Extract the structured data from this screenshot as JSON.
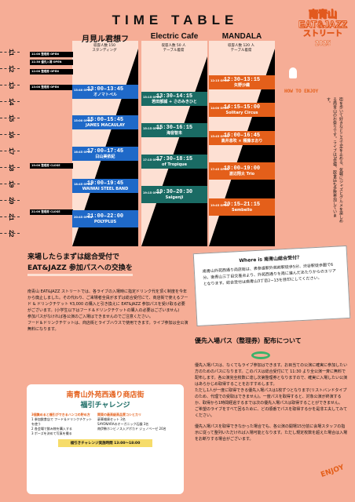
{
  "header": {
    "title": "TIME TABLE",
    "logo_l1": "南青山",
    "logo_l2": "EAT&JAZZ",
    "logo_l3": "ストリート",
    "logo_l4": "2025"
  },
  "venues": [
    {
      "name": "月見ル君想フ",
      "sub": "収容人数 150\nスタンディング"
    },
    {
      "name": "Electric Cafe",
      "sub": "収容人数 50 人\nテーブル着席"
    },
    {
      "name": "MANDALA",
      "sub": "収容人数 120 人\nテーブル着席"
    }
  ],
  "hours": [
    "11",
    "12",
    "13",
    "14",
    "15",
    "16",
    "17",
    "18",
    "19",
    "20",
    "21",
    "22"
  ],
  "notices": [
    "11:00 整理券 OPEN",
    "11:30 優先入場 OPEN",
    "12:00 整理券 OPEN",
    "13:00 整理券 OPEN",
    "19:00 整理券 CLOSE",
    "21:00 整理券 CLOSE"
  ],
  "tsuki": [
    {
      "open": "13:40 OPEN",
      "time": "13:00–13:45",
      "name": "オノマトペル"
    },
    {
      "open": "15:00 OPEN",
      "time": "15:00–15:45",
      "name": "JAMES MACAULAY"
    },
    {
      "open": "16:45 OPEN",
      "time": "17:00–17:45",
      "name": "臼山美依紀"
    },
    {
      "open": "18:45 OPEN",
      "time": "19:00–19:45",
      "name": "WAIWAI STEEL BAND"
    },
    {
      "open": "20:45 OPEN",
      "time": "21:00–22:00",
      "name": "POLYPLUS"
    }
  ],
  "electric": [
    {
      "open": "13:15 OPEN",
      "time": "13:30–14:15",
      "name": "若田部誠 + さのみきひと"
    },
    {
      "open": "15:15 OPEN",
      "time": "15:30–16:15",
      "name": "海音智未"
    },
    {
      "open": "17:15 OPEN",
      "time": "17:30–18:15",
      "name": "of Tropique"
    },
    {
      "open": "19:15 OPEN",
      "time": "19:30–20:30",
      "name": "Saigenji"
    }
  ],
  "mandala": [
    {
      "open": "12:15 OPEN",
      "time": "12:30–13:15",
      "name": "矢野沙織"
    },
    {
      "open": "14:00 OPEN",
      "time": "14:15–15:00",
      "name": "Solitary Circus"
    },
    {
      "open": "15:45 OPEN",
      "time": "16:00–16:45",
      "name": "高井息吹 × 種藤まおり"
    },
    {
      "open": "17:45 OPEN",
      "time": "18:00–19:00",
      "name": "渡辺翔太 Trio"
    },
    {
      "open": "19:45 OPEN",
      "time": "20:15–21:15",
      "name": "Sembello"
    }
  ],
  "howto": {
    "title": "HOW TO ENJOY",
    "text": "街を歩いて好きなところで足を止める、気軽にジャズとグルメを楽しめる南青山のお祭りです。ライブは3会場、飲食店も多数参加しています。"
  },
  "entry": {
    "h1": "来場したらまずは総合受付で",
    "h2": "EAT&JAZZ 参加パスへの交換を",
    "p1": "南青山 EAT&JAZZ ストリートでは、各ライブの入場時に指定ドリンク代を頂く制度を今年から廃止しました。その代わり、ご来場者全員がまずは総合受付にて、商店街で使えるフード & ドリンクチケット ¥3,000 の購入と引き換えに EAT&JAZZ 参加パスを受け取る必要がございます。(小学生以下はフード＆ドリンクチケットの購入の必要はございません)",
    "p2": "参加パスがなければ各公演のご入場はできませんのでご注意ください。",
    "p3": "フード＆ドリンクチケットは、商店街とライブハウスで使用できます。ライブ参加は全公演無料になります。"
  },
  "where": {
    "title": "Where is 南青山総合受付？",
    "text": "南青山外苑西通り商店街は、表参道駅外苑前駅徒歩5分、渋谷駅徒歩圏で6分。南青山三丁目交差点より、外苑西通りを南に進んだあたりからのエリアとなります。総合受付は南青山3丁目2−13を目印にしてください。"
  },
  "priority": {
    "title": "優先入場パス（整理券）配布について",
    "p1": "優先入場パスは、なくてもライブ参加はできます。お目当ての公演に確実に参加したい方のためのパスになります。このパスは総合受付にて 11:30 より全公演一斉に無料で配布します。各公演完全枚数に達し次第整理券となりますので、確実に入場したい公演はあらかじめ取得することをおすすめします。",
    "p2": "ただし1人が一度に取得できる優先入場パスは1枚ずつとなります(リストバンドタイプのため、代理での受取はできません)。一度パスを取得すると、対象公演が終演するか、取得から1時間経過するまでは次の優先入場パスは取得することができません。",
    "p3": "ご希望のライブをすべて回るために、どの順番でパスを取得するかを是非工夫してみてください。",
    "p4": "優先入場パスを取得できなかった場合でも、各公演の開場15分前に会場スタッフの指示に従って整列いただければ入場可能となります。ただし規定枚数を超えた場合は入場をお断りする場合がございます。"
  },
  "flyer": {
    "t1": "南青山外苑西通り商店街",
    "t2": "福引チャレンジ",
    "s1": "3個集めると福引ができるハンコの貯め方",
    "s2": "1 参加飲食店で フード＆ドリンクチケットを使う",
    "s3": "2 各会場で飲み物を購入する",
    "s4": "3 ポーズを決めて写真を撮る",
    "prize": "関東の最高級高品質コシヒカリ",
    "p2": "豪華雑貨セット 3名",
    "p3": "SAYONARAのオーガニック石鹸 3名",
    "p4": "南伊勢ホンビノス入アボカド ジェノベーゼ 20名",
    "foot": "福引きチャレンジ実施時間 13:00〜18:00"
  },
  "enjoy": "ENJOY"
}
